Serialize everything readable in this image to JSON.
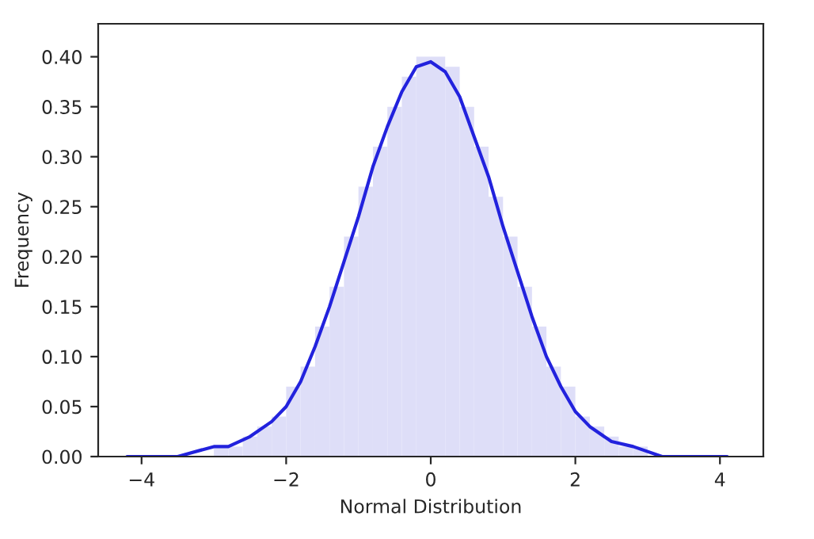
{
  "chart_data": {
    "type": "histogram",
    "xlabel": "Normal Distribution",
    "ylabel": "Frequency",
    "series": [
      {
        "color": "#dedef8",
        "bins": [
          -4.2,
          -4.0,
          -3.8,
          -3.6,
          -3.4,
          -3.2,
          -3.0,
          -2.8,
          -2.6,
          -2.4,
          -2.2,
          -2.0,
          -1.8,
          -1.6,
          -1.4,
          -1.2,
          -1.0,
          -0.8,
          -0.6,
          -0.4,
          -0.2,
          0.0,
          0.2,
          0.4,
          0.6,
          0.8,
          1.0,
          1.2,
          1.4,
          1.6,
          1.8,
          2.0,
          2.2,
          2.4,
          2.6,
          2.8,
          3.0,
          3.2,
          3.4,
          3.6,
          3.8,
          4.0,
          4.2
        ],
        "values": [
          0,
          0,
          0,
          0,
          0,
          0,
          0.01,
          0.01,
          0.02,
          0.03,
          0.04,
          0.07,
          0.09,
          0.13,
          0.17,
          0.22,
          0.27,
          0.31,
          0.35,
          0.38,
          0.4,
          0.4,
          0.39,
          0.35,
          0.31,
          0.26,
          0.22,
          0.17,
          0.13,
          0.09,
          0.07,
          0.04,
          0.03,
          0.02,
          0.01,
          0.01,
          0,
          0,
          0,
          0,
          0,
          0
        ]
      },
      {
        "type": "line",
        "color": "#2222dd",
        "x": [
          -4.2,
          -3.5,
          -3.0,
          -2.8,
          -2.5,
          -2.2,
          -2.0,
          -1.8,
          -1.6,
          -1.4,
          -1.2,
          -1.0,
          -0.8,
          -0.6,
          -0.4,
          -0.2,
          0.0,
          0.2,
          0.4,
          0.6,
          0.8,
          1.0,
          1.2,
          1.4,
          1.6,
          1.8,
          2.0,
          2.2,
          2.5,
          2.8,
          3.2,
          4.1
        ],
        "values": [
          0,
          0,
          0.01,
          0.01,
          0.02,
          0.035,
          0.05,
          0.075,
          0.11,
          0.15,
          0.195,
          0.24,
          0.29,
          0.33,
          0.365,
          0.39,
          0.395,
          0.385,
          0.36,
          0.32,
          0.28,
          0.23,
          0.185,
          0.14,
          0.1,
          0.07,
          0.045,
          0.03,
          0.015,
          0.01,
          0,
          0
        ]
      }
    ],
    "xlim": [
      -4.6,
      4.6
    ],
    "ylim": [
      0,
      0.433
    ],
    "xticks": [
      {
        "value": -4,
        "label": "−4"
      },
      {
        "value": -2,
        "label": "−2"
      },
      0,
      2,
      4
    ],
    "yticks": [
      {
        "value": 0,
        "label": "0.00"
      },
      {
        "value": 0.05,
        "label": "0.05"
      },
      {
        "value": 0.1,
        "label": "0.10"
      },
      {
        "value": 0.15,
        "label": "0.15"
      },
      {
        "value": 0.2,
        "label": "0.20"
      },
      {
        "value": 0.25,
        "label": "0.25"
      },
      {
        "value": 0.3,
        "label": "0.30"
      },
      {
        "value": 0.35,
        "label": "0.35"
      },
      {
        "value": 0.4,
        "label": "0.40"
      }
    ]
  }
}
